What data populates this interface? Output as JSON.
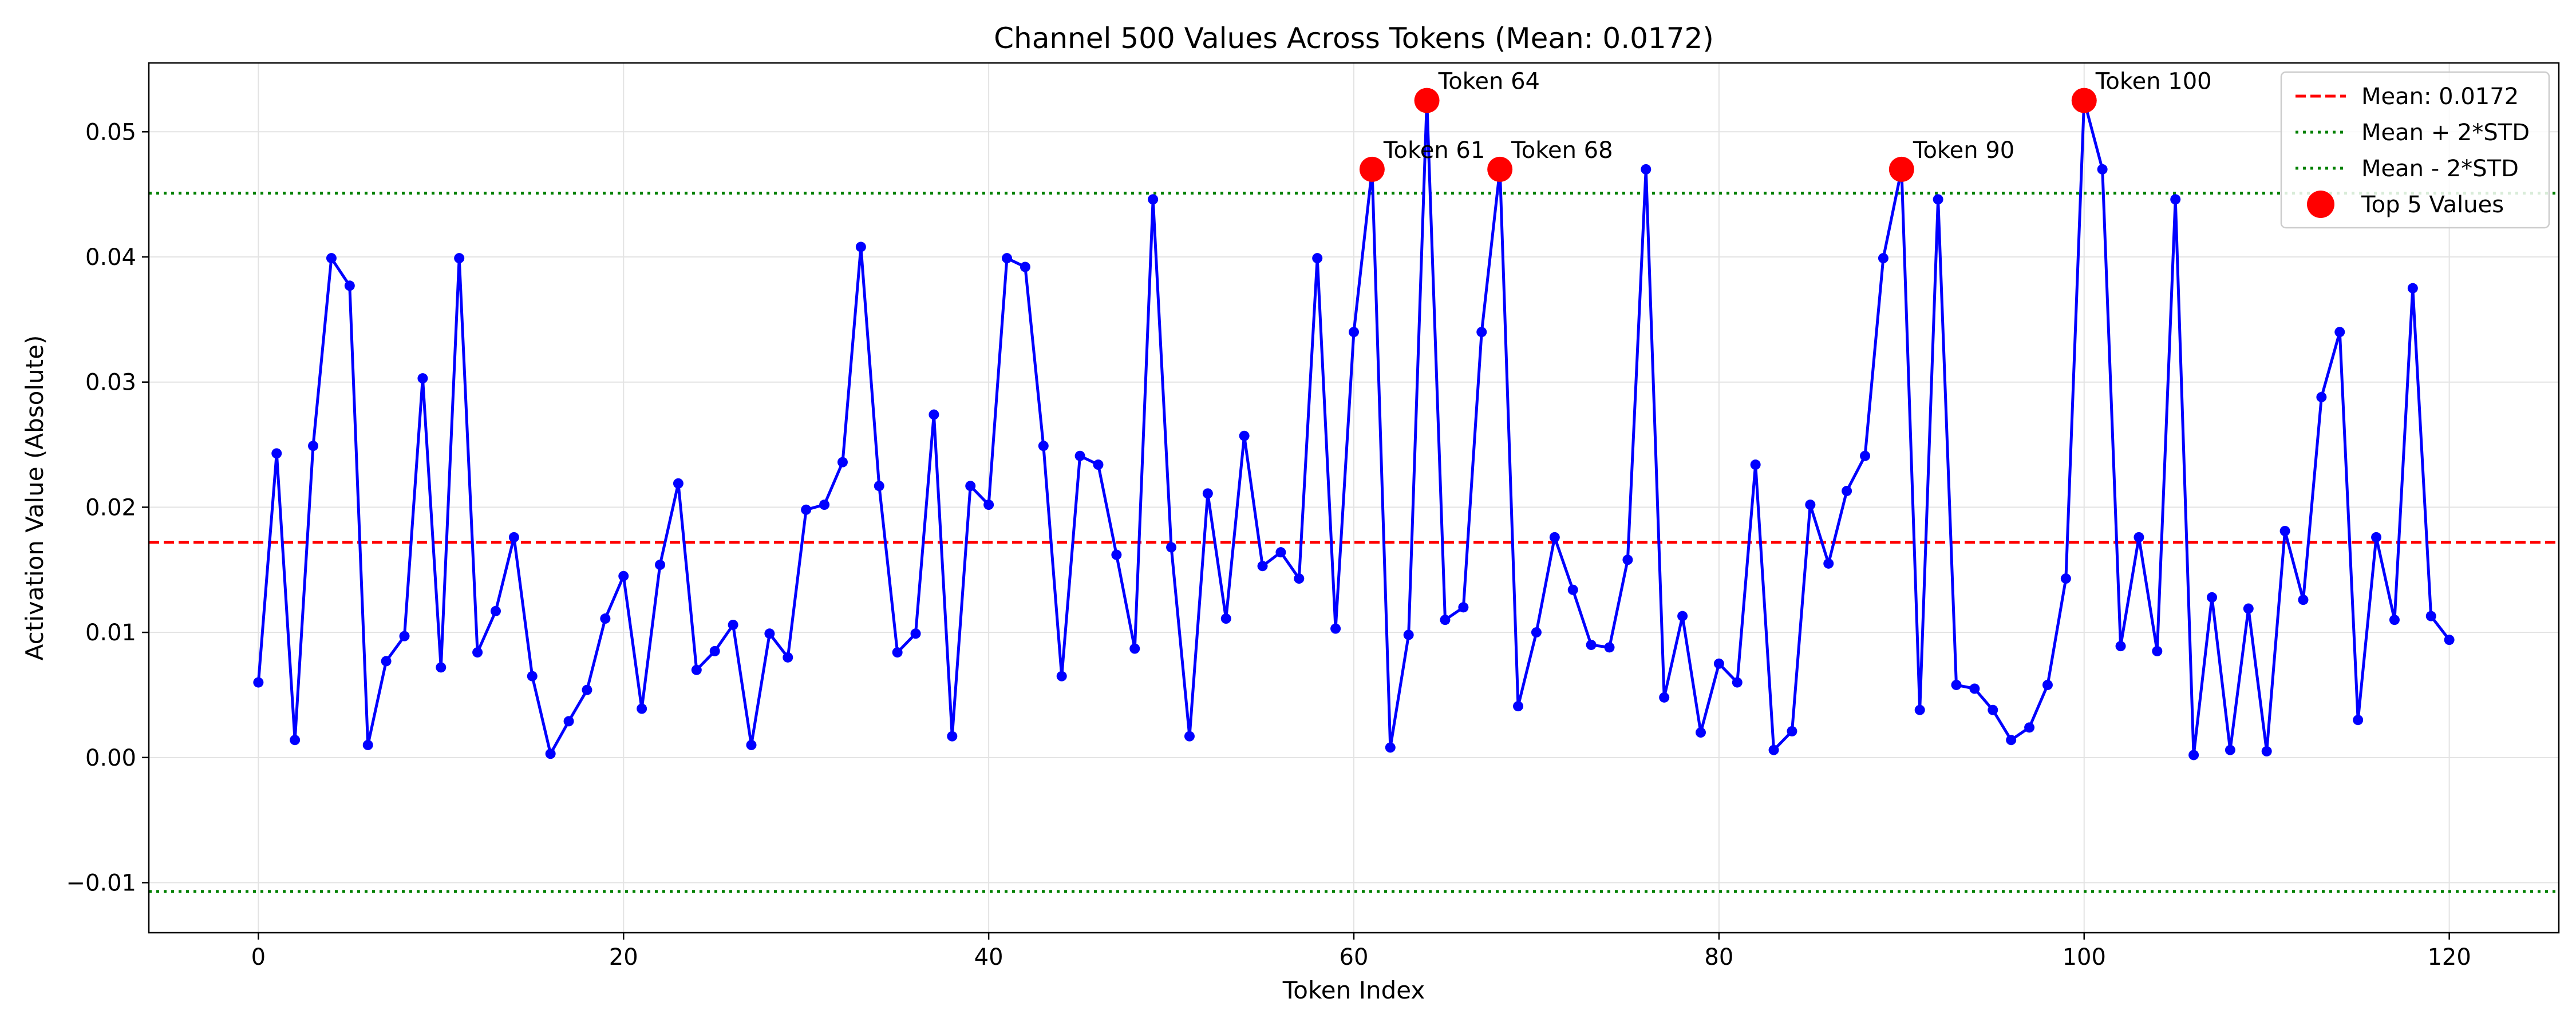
{
  "chart_data": {
    "type": "line",
    "title": "Channel 500 Values Across Tokens (Mean: 0.0172)",
    "xlabel": "Token Index",
    "ylabel": "Activation Value (Absolute)",
    "xlim": [
      -6,
      126
    ],
    "ylim": [
      -0.014,
      0.0555
    ],
    "x_ticks": [
      0,
      20,
      40,
      60,
      80,
      100,
      120
    ],
    "y_ticks": [
      -0.01,
      0.0,
      0.01,
      0.02,
      0.03,
      0.04,
      0.05
    ],
    "x_tick_labels": [
      "0",
      "20",
      "40",
      "60",
      "80",
      "100",
      "120"
    ],
    "y_tick_labels": [
      "−0.01",
      "0.00",
      "0.01",
      "0.02",
      "0.03",
      "0.04",
      "0.05"
    ],
    "grid": true,
    "legend_position": "top-right",
    "series": [
      {
        "type": "line",
        "color": "#0000ff",
        "x_start": 0,
        "values": [
          0.006,
          0.0243,
          0.0014,
          0.0249,
          0.0399,
          0.0377,
          0.001,
          0.0077,
          0.0097,
          0.0303,
          0.0072,
          0.0399,
          0.0084,
          0.0117,
          0.0176,
          0.0065,
          0.0003,
          0.0029,
          0.0054,
          0.0111,
          0.0145,
          0.0039,
          0.0154,
          0.0219,
          0.007,
          0.0085,
          0.0106,
          0.001,
          0.0099,
          0.008,
          0.0198,
          0.0202,
          0.0236,
          0.0408,
          0.0217,
          0.0084,
          0.0099,
          0.0274,
          0.0017,
          0.0217,
          0.0202,
          0.0399,
          0.0392,
          0.0249,
          0.0065,
          0.0241,
          0.0234,
          0.0162,
          0.0087,
          0.0446,
          0.0168,
          0.0017,
          0.0211,
          0.0111,
          0.0257,
          0.0153,
          0.0164,
          0.0143,
          0.0399,
          0.0103,
          0.034,
          0.047,
          0.0008,
          0.0098,
          0.0525,
          0.011,
          0.012,
          0.034,
          0.047,
          0.0041,
          0.01,
          0.0176,
          0.0134,
          0.009,
          0.0088,
          0.0158,
          0.047,
          0.0048,
          0.0113,
          0.002,
          0.0075,
          0.006,
          0.0234,
          0.0006,
          0.0021,
          0.0202,
          0.0155,
          0.0213,
          0.0241,
          0.0399,
          0.047,
          0.0038,
          0.0446,
          0.0058,
          0.0055,
          0.0038,
          0.0014,
          0.0024,
          0.0058,
          0.0143,
          0.0525,
          0.047,
          0.0089,
          0.0176,
          0.0085,
          0.0446,
          0.0002,
          0.0128,
          0.0006,
          0.0119,
          0.0005,
          0.0181,
          0.0126,
          0.0288,
          0.034,
          0.003,
          0.0176,
          0.011,
          0.0375,
          0.0113,
          0.0094
        ]
      }
    ],
    "reference_lines": [
      {
        "name": "Mean: 0.0172",
        "y": 0.0172,
        "color": "#ff0000",
        "style": "dashed"
      },
      {
        "name": "Mean + 2*STD",
        "y": 0.0451,
        "color": "#008000",
        "style": "dotted"
      },
      {
        "name": "Mean - 2*STD",
        "y": -0.0107,
        "color": "#008000",
        "style": "dotted"
      }
    ],
    "top_values": {
      "name": "Top 5 Values",
      "color": "#ff0000",
      "points": [
        {
          "x": 61,
          "y": 0.047,
          "label": "Token 61"
        },
        {
          "x": 64,
          "y": 0.0525,
          "label": "Token 64"
        },
        {
          "x": 68,
          "y": 0.047,
          "label": "Token 68"
        },
        {
          "x": 90,
          "y": 0.047,
          "label": "Token 90"
        },
        {
          "x": 100,
          "y": 0.0525,
          "label": "Token 100"
        }
      ]
    }
  }
}
